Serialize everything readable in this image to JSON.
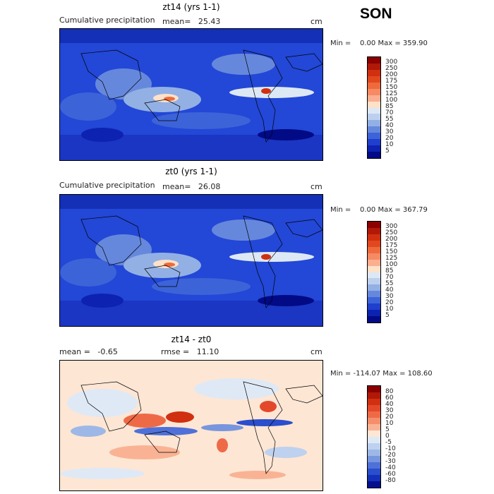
{
  "season": "SON",
  "panels": [
    {
      "title": "zt14 (yrs 1-1)",
      "left_label": "Cumulative precipitation",
      "mean_label": "mean=   25.43",
      "unit": "cm",
      "min_max": "Min =    0.00 Max = 359.90",
      "colorbar_labels": [
        "300",
        "250",
        "200",
        "175",
        "150",
        "125",
        "100",
        "85",
        "70",
        "55",
        "40",
        "30",
        "20",
        "10",
        "5"
      ]
    },
    {
      "title": "zt0 (yrs 1-1)",
      "left_label": "Cumulative precipitation",
      "mean_label": "mean=   26.08",
      "unit": "cm",
      "min_max": "Min =    0.00 Max = 367.79",
      "colorbar_labels": [
        "300",
        "250",
        "200",
        "175",
        "150",
        "125",
        "100",
        "85",
        "70",
        "55",
        "40",
        "30",
        "20",
        "10",
        "5"
      ]
    },
    {
      "title": "zt14 - zt0",
      "left_label": "mean =   -0.65",
      "mean_label": "rmse =   11.10",
      "unit": "cm",
      "min_max": "Min = -114.07 Max = 108.60",
      "colorbar_labels": [
        "80",
        "60",
        "40",
        "30",
        "20",
        "10",
        "5",
        "0",
        "-5",
        "-10",
        "-20",
        "-30",
        "-40",
        "-60",
        "-80"
      ]
    }
  ],
  "colors": {
    "precip_scale": [
      "#8b0000",
      "#b01808",
      "#d0300f",
      "#e0481f",
      "#ee6a3c",
      "#f58a64",
      "#fbae90",
      "#fde1c8",
      "#dde8f5",
      "#bcd0ee",
      "#92b0e4",
      "#6688dc",
      "#3d63d8",
      "#1f3fcc",
      "#0d22b0",
      "#020a86"
    ],
    "diff_scale": [
      "#8b0000",
      "#b01808",
      "#d0300f",
      "#e4482a",
      "#ee6a46",
      "#f58e6c",
      "#f9b394",
      "#fde6d4",
      "#dfe9f6",
      "#bed1ee",
      "#9db8e6",
      "#7796de",
      "#4e70d8",
      "#2a4ecc",
      "#1530b8",
      "#05108e"
    ]
  }
}
